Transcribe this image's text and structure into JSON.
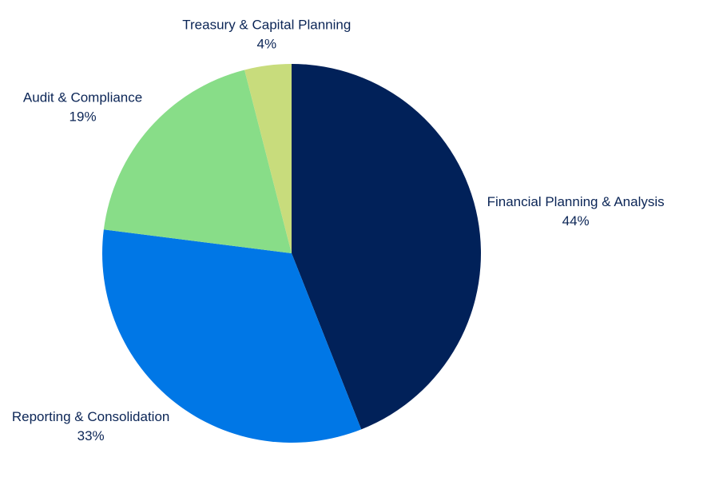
{
  "chart_data": {
    "type": "pie",
    "categories": [
      "Financial Planning & Analysis",
      "Reporting & Consolidation",
      "Audit & Compliance",
      "Treasury & Capital Planning"
    ],
    "values": [
      44,
      33,
      19,
      4
    ],
    "value_labels": [
      "44%",
      "33%",
      "19%",
      "4%"
    ],
    "colors": [
      "#012159",
      "#0077e6",
      "#88dd88",
      "#c8dc7c"
    ]
  }
}
